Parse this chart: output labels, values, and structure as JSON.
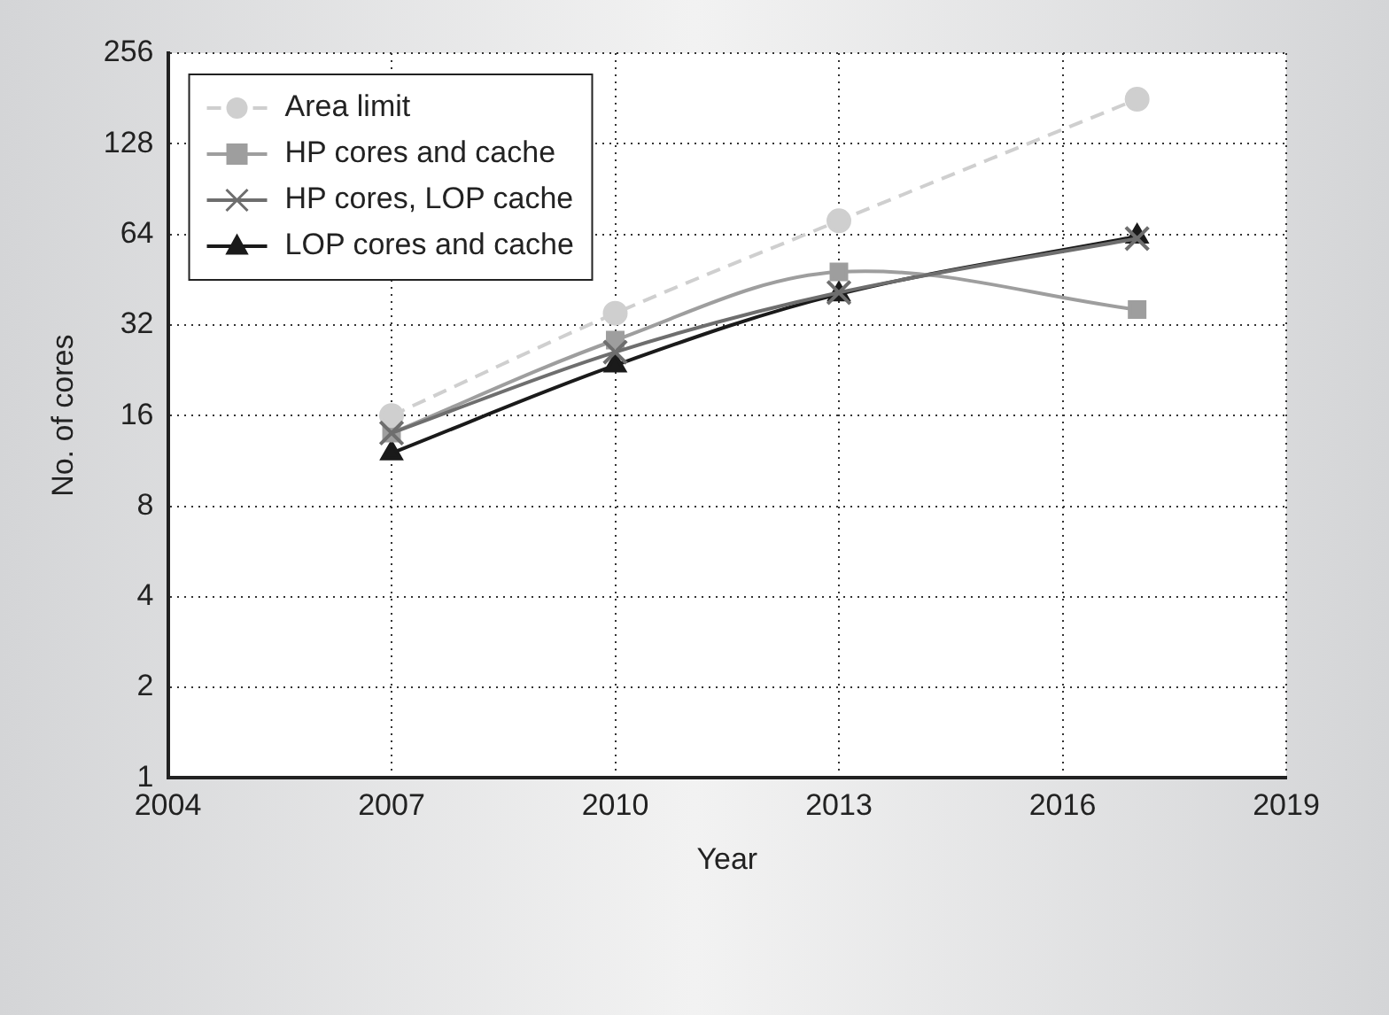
{
  "chart_data": {
    "type": "line",
    "xlabel": "Year",
    "ylabel": "No. of cores",
    "x": [
      2007,
      2010,
      2013,
      2017
    ],
    "series": [
      {
        "name": "Area limit",
        "color": "#cfcfcf",
        "marker": "circle",
        "line_style": "dashed",
        "values": [
          16,
          35,
          71,
          180
        ]
      },
      {
        "name": "HP cores and cache",
        "color": "#9e9e9e",
        "marker": "square",
        "line_style": "solid",
        "values": [
          14,
          28.5,
          48,
          36
        ]
      },
      {
        "name": "HP cores, LOP cache",
        "color": "#6e6e6e",
        "marker": "cross",
        "line_style": "solid",
        "values": [
          14,
          26,
          41,
          62
        ]
      },
      {
        "name": "LOP cores and cache",
        "color": "#1a1a1a",
        "marker": "triangle",
        "line_style": "solid",
        "values": [
          12,
          23.5,
          40.5,
          63
        ]
      }
    ],
    "xlim": [
      2004,
      2019
    ],
    "xticks": [
      2004,
      2007,
      2010,
      2013,
      2016,
      2019
    ],
    "ylim": [
      1,
      256
    ],
    "yticks": [
      1,
      2,
      4,
      8,
      16,
      32,
      64,
      128,
      256
    ],
    "log": "y",
    "grid": true,
    "legend": "top left"
  }
}
